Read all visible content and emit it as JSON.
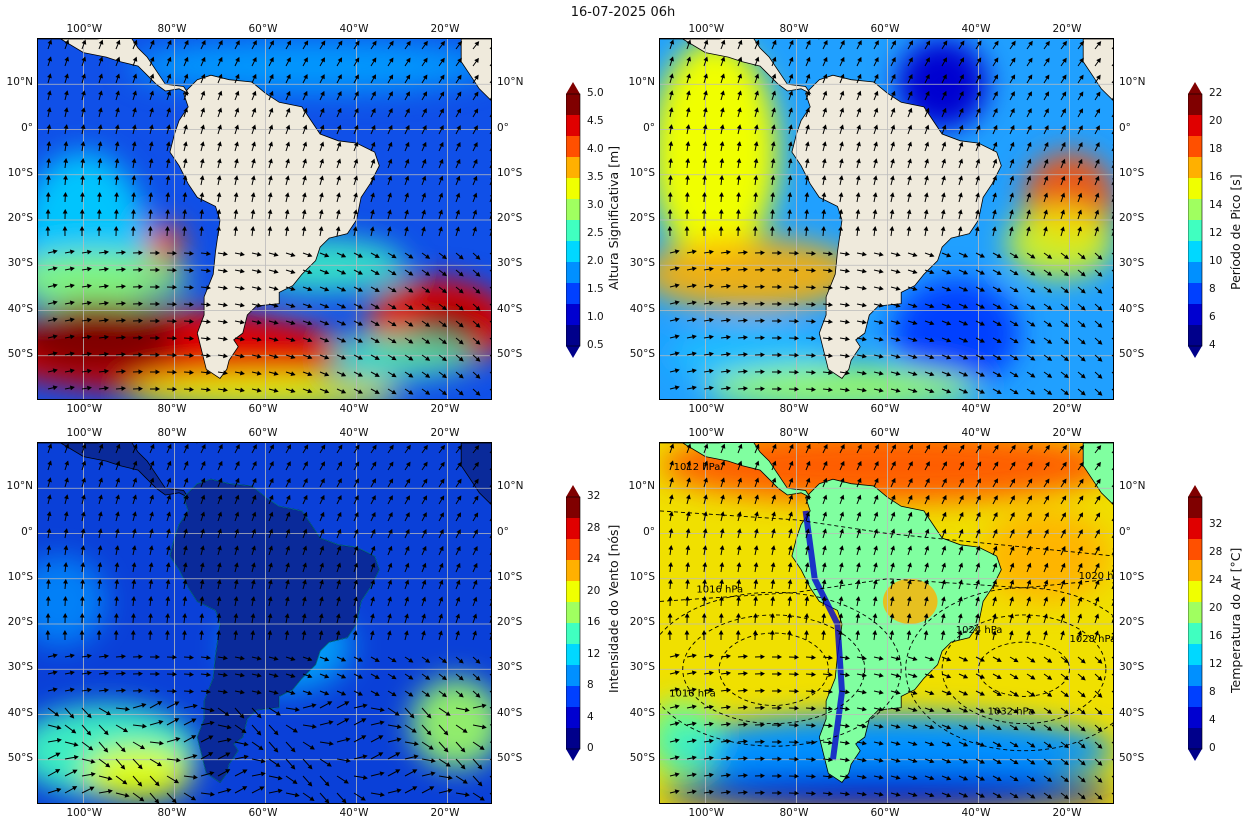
{
  "title": "16-07-2025 06h",
  "axes": {
    "lon_ticks": [
      "100°W",
      "80°W",
      "60°W",
      "40°W",
      "20°W"
    ],
    "lat_ticks": [
      "10°N",
      "0°",
      "10°S",
      "20°S",
      "30°S",
      "40°S",
      "50°S"
    ]
  },
  "panels": [
    {
      "name": "altura-significativa",
      "colorbar": {
        "label": "Altura Significativa [m]",
        "ticks": [
          "5.0",
          "4.5",
          "4.0",
          "3.5",
          "3.0",
          "2.5",
          "2.0",
          "1.5",
          "1.0",
          "0.5"
        ],
        "range": [
          0.5,
          5.0
        ],
        "colormap": [
          "#00008b",
          "#0000d0",
          "#0040ff",
          "#0090ff",
          "#00d8ff",
          "#40ffc0",
          "#a0ff60",
          "#f0ff00",
          "#ffb000",
          "#ff5000",
          "#e00000",
          "#800000"
        ]
      },
      "ocean_color": "#1050e8",
      "legend_like": "none"
    },
    {
      "name": "periodo-de-pico",
      "colorbar": {
        "label": "Período de Pico [s]",
        "ticks": [
          "22",
          "20",
          "18",
          "16",
          "14",
          "12",
          "10",
          "8",
          "6",
          "4"
        ],
        "range": [
          4,
          22
        ],
        "colormap": [
          "#00008b",
          "#0000d0",
          "#0040ff",
          "#0090ff",
          "#00d8ff",
          "#40ffc0",
          "#a0ff60",
          "#f0ff00",
          "#ffb000",
          "#ff5000",
          "#e00000",
          "#800000"
        ]
      },
      "ocean_color": "#20a0ff"
    },
    {
      "name": "intensidade-do-vento",
      "colorbar": {
        "label": "Intensidade do Vento [nós]",
        "ticks": [
          "32",
          "28",
          "24",
          "20",
          "16",
          "12",
          "8",
          "4",
          "0"
        ],
        "range": [
          0,
          32
        ],
        "colormap": [
          "#00008b",
          "#0000d0",
          "#0040ff",
          "#0090ff",
          "#00d8ff",
          "#40ffc0",
          "#a0ff60",
          "#f0ff00",
          "#ffb000",
          "#ff5000",
          "#e00000",
          "#800000"
        ]
      },
      "ocean_color": "#0a40d8"
    },
    {
      "name": "temperatura-do-ar",
      "colorbar": {
        "label": "Temperatura do Ar [°C]",
        "ticks": [
          "32",
          "28",
          "24",
          "20",
          "16",
          "12",
          "8",
          "4",
          "0"
        ],
        "range": [
          0,
          36
        ],
        "colormap": [
          "#00008b",
          "#0000d0",
          "#0040ff",
          "#0090ff",
          "#00d8ff",
          "#40ffc0",
          "#a0ff60",
          "#f0ff00",
          "#ffb000",
          "#ff5000",
          "#e00000",
          "#800000"
        ]
      },
      "ocean_color": "#f0e000",
      "isobar_labels": [
        "1012 hPa",
        "1016 hPa",
        "1020 hPa",
        "1024 hPa",
        "1028 hPa",
        "1016 hPa",
        "1032 hPa"
      ]
    }
  ]
}
